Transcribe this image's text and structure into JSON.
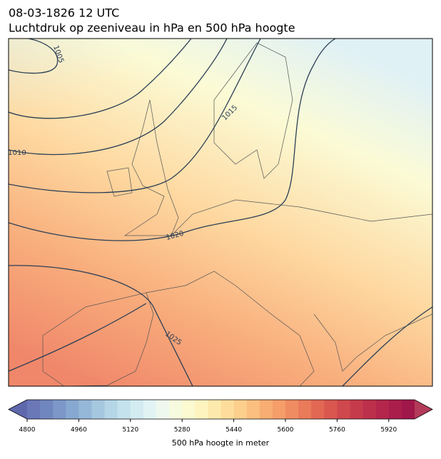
{
  "title": "08-03-1826 12 UTC",
  "subtitle": "Luchtdruk op zeeniveau in hPa en 500 hPa hoogte",
  "map": {
    "isobar_labels": [
      "1005",
      "1010",
      "1015",
      "1020",
      "1025"
    ]
  },
  "colorbar": {
    "label": "500 hPa hoogte in meter",
    "lim": [
      4800,
      6000
    ],
    "ticks": [
      4800,
      4960,
      5120,
      5280,
      5440,
      5600,
      5760,
      5920
    ],
    "colors": [
      "#6b78b8",
      "#7086bf",
      "#7c97c8",
      "#87a8d0",
      "#96b8d8",
      "#a6c8df",
      "#b5d6e7",
      "#c4e2ed",
      "#d3ecf2",
      "#e2f3f4",
      "#eef8ee",
      "#f6fbe0",
      "#fbfad0",
      "#fef4c0",
      "#fee9ad",
      "#fedd9c",
      "#fdcf8c",
      "#fbbf7f",
      "#f8ae73",
      "#f59e6a",
      "#f08c61",
      "#e97a5a",
      "#e26854",
      "#d9574f",
      "#cf484d",
      "#c63b4c",
      "#bd304c",
      "#b4264c",
      "#aa1e4b",
      "#a0174a"
    ],
    "extend_colors": [
      "#5f68ad",
      "#b33a58"
    ]
  }
}
